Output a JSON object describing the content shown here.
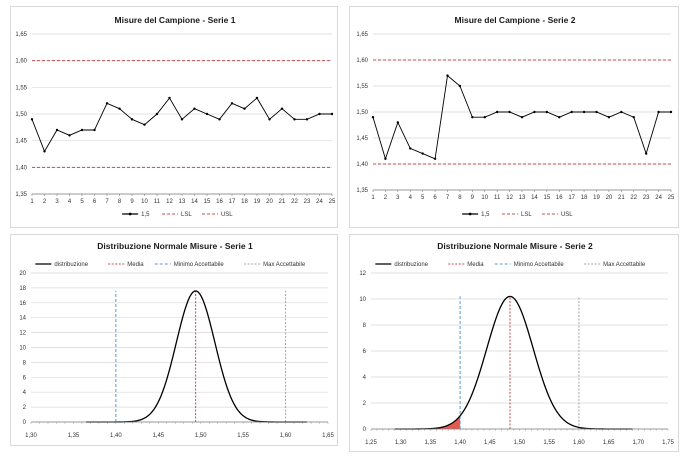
{
  "colors": {
    "series": "#000000",
    "lsl": "#c0504d",
    "usl": "#c0504d",
    "media": "#c0504d",
    "min": "#5b9bd5",
    "max": "#a6a6a6",
    "area": "#e03c31",
    "grid": "#d9d9d9"
  },
  "chart_data": [
    {
      "type": "line",
      "title": "Misure del Campione - Serie 1",
      "x": [
        1,
        2,
        3,
        4,
        5,
        6,
        7,
        8,
        9,
        10,
        11,
        12,
        13,
        14,
        15,
        16,
        17,
        18,
        19,
        20,
        21,
        22,
        23,
        24,
        25
      ],
      "x_tick_labels": [
        "1",
        "2",
        "3",
        "4",
        "5",
        "6",
        "7",
        "8",
        "9",
        "10",
        "11",
        "12",
        "13",
        "14",
        "15",
        "16",
        "17",
        "18",
        "19",
        "20",
        "21",
        "22",
        "23",
        "24",
        "25"
      ],
      "series": [
        {
          "name": "1,5",
          "values": [
            1.49,
            1.43,
            1.47,
            1.46,
            1.47,
            1.47,
            1.52,
            1.51,
            1.49,
            1.48,
            1.5,
            1.53,
            1.49,
            1.51,
            1.5,
            1.49,
            1.52,
            1.51,
            1.53,
            1.49,
            1.51,
            1.49,
            1.49,
            1.5,
            1.5
          ]
        },
        {
          "name": "LSL",
          "values": [
            1.4,
            1.4,
            1.4,
            1.4,
            1.4,
            1.4,
            1.4,
            1.4,
            1.4,
            1.4,
            1.4,
            1.4,
            1.4,
            1.4,
            1.4,
            1.4,
            1.4,
            1.4,
            1.4,
            1.4,
            1.4,
            1.4,
            1.4,
            1.4,
            1.4
          ]
        },
        {
          "name": "USL",
          "values": [
            1.6,
            1.6,
            1.6,
            1.6,
            1.6,
            1.6,
            1.6,
            1.6,
            1.6,
            1.6,
            1.6,
            1.6,
            1.6,
            1.6,
            1.6,
            1.6,
            1.6,
            1.6,
            1.6,
            1.6,
            1.6,
            1.6,
            1.6,
            1.6,
            1.6
          ]
        }
      ],
      "ylim": [
        1.35,
        1.65
      ],
      "y_tick_labels": [
        "1,35",
        "1,40",
        "1,45",
        "1,50",
        "1,55",
        "1,60",
        "1,65"
      ],
      "grid": true,
      "legend_position": "bottom"
    },
    {
      "type": "line",
      "title": "Misure del Campione - Serie 2",
      "x": [
        1,
        2,
        3,
        4,
        5,
        6,
        7,
        8,
        9,
        10,
        11,
        12,
        13,
        14,
        15,
        16,
        17,
        18,
        19,
        20,
        21,
        22,
        23,
        24,
        25
      ],
      "x_tick_labels": [
        "1",
        "2",
        "3",
        "4",
        "5",
        "6",
        "7",
        "8",
        "9",
        "10",
        "11",
        "12",
        "13",
        "14",
        "15",
        "16",
        "17",
        "18",
        "19",
        "20",
        "21",
        "22",
        "23",
        "24",
        "25"
      ],
      "series": [
        {
          "name": "1,5",
          "values": [
            1.49,
            1.41,
            1.48,
            1.43,
            1.42,
            1.41,
            1.57,
            1.55,
            1.49,
            1.49,
            1.5,
            1.5,
            1.49,
            1.5,
            1.5,
            1.49,
            1.5,
            1.5,
            1.5,
            1.49,
            1.5,
            1.49,
            1.42,
            1.5,
            1.5
          ]
        },
        {
          "name": "LSL",
          "values": [
            1.4,
            1.4,
            1.4,
            1.4,
            1.4,
            1.4,
            1.4,
            1.4,
            1.4,
            1.4,
            1.4,
            1.4,
            1.4,
            1.4,
            1.4,
            1.4,
            1.4,
            1.4,
            1.4,
            1.4,
            1.4,
            1.4,
            1.4,
            1.4,
            1.4
          ]
        },
        {
          "name": "USL",
          "values": [
            1.6,
            1.6,
            1.6,
            1.6,
            1.6,
            1.6,
            1.6,
            1.6,
            1.6,
            1.6,
            1.6,
            1.6,
            1.6,
            1.6,
            1.6,
            1.6,
            1.6,
            1.6,
            1.6,
            1.6,
            1.6,
            1.6,
            1.6,
            1.6,
            1.6
          ]
        }
      ],
      "ylim": [
        1.35,
        1.65
      ],
      "y_tick_labels": [
        "1,35",
        "1,40",
        "1,45",
        "1,50",
        "1,55",
        "1,60",
        "1,65"
      ],
      "grid": true,
      "legend_position": "bottom"
    },
    {
      "type": "line",
      "title": "Distribuzione Normale Misure - Serie 1",
      "distribution": {
        "mean": 1.494,
        "std_dev": 0.0227,
        "x_range": [
          1.365,
          1.625
        ]
      },
      "peak": 17.6,
      "series": [
        {
          "name": "distribuzione",
          "style": "curve"
        },
        {
          "name": "Media",
          "x": 1.494
        },
        {
          "name": "Minimo Accettabile",
          "x": 1.4
        },
        {
          "name": "Max Accettabile",
          "x": 1.6
        }
      ],
      "xlim": [
        1.3,
        1.65
      ],
      "x_tick_labels": [
        "1,30",
        "1,35",
        "1,40",
        "1,45",
        "1,50",
        "1,55",
        "1,60",
        "1,65"
      ],
      "ylim": [
        0,
        20
      ],
      "y_tick_labels": [
        "0",
        "2",
        "4",
        "6",
        "8",
        "10",
        "12",
        "14",
        "16",
        "18",
        "20"
      ],
      "grid": true,
      "legend_position": "top"
    },
    {
      "type": "line",
      "title": "Distribuzione Normale Misure - Serie 2",
      "distribution": {
        "mean": 1.484,
        "std_dev": 0.0391,
        "x_range": [
          1.29,
          1.69
        ]
      },
      "peak": 10.2,
      "shaded_below": 1.4,
      "series": [
        {
          "name": "distribuzione",
          "style": "curve"
        },
        {
          "name": "Media",
          "x": 1.484
        },
        {
          "name": "Minimo Accettabile",
          "x": 1.4
        },
        {
          "name": "Max Accettabile",
          "x": 1.6
        }
      ],
      "xlim": [
        1.25,
        1.75
      ],
      "x_tick_labels": [
        "1,25",
        "1,30",
        "1,35",
        "1,40",
        "1,45",
        "1,50",
        "1,55",
        "1,60",
        "1,65",
        "1,70",
        "1,75"
      ],
      "ylim": [
        0,
        12
      ],
      "y_tick_labels": [
        "0",
        "2",
        "4",
        "6",
        "8",
        "10",
        "12"
      ],
      "grid": true,
      "legend_position": "top"
    }
  ]
}
